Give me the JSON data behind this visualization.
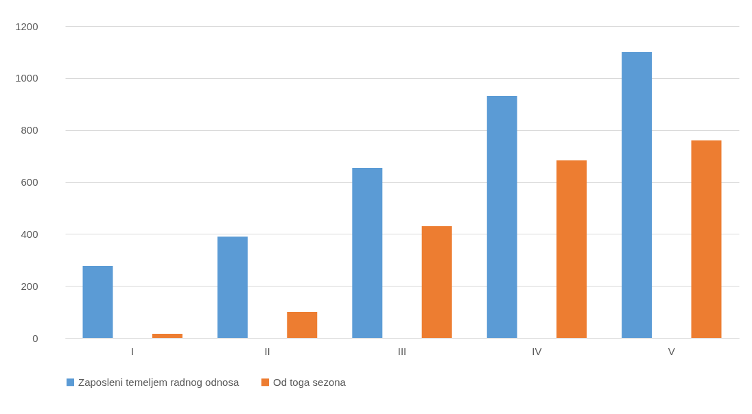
{
  "chart_data": {
    "type": "bar",
    "categories": [
      "I",
      "II",
      "III",
      "IV",
      "V"
    ],
    "series": [
      {
        "name": "Zaposleni temeljem radnog odnosa",
        "color": "#5b9bd5",
        "values": [
          277,
          390,
          654,
          931,
          1100
        ]
      },
      {
        "name": "Od toga sezona",
        "color": "#ed7d31",
        "values": [
          16,
          100,
          430,
          683,
          760
        ]
      }
    ],
    "ylim": [
      0,
      1200
    ],
    "yticks": [
      0,
      200,
      400,
      600,
      800,
      1000,
      1200
    ],
    "grid": "y",
    "legend": "bottom"
  }
}
